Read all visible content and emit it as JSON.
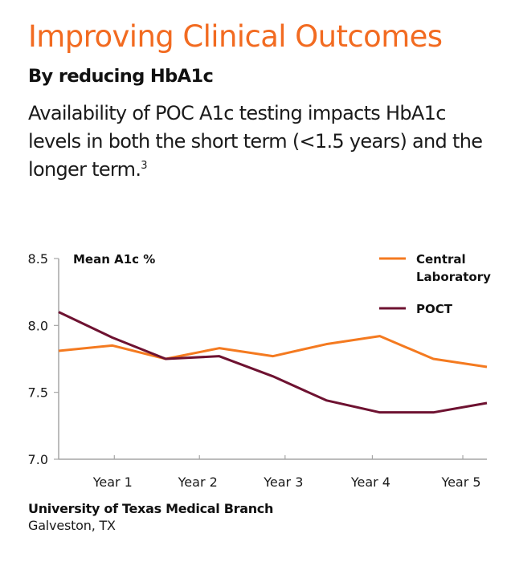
{
  "header": {
    "title": "Improving Clinical Outcomes",
    "subtitle": "By reducing HbA1c",
    "body": "Availability of POC A1c testing impacts HbA1c levels in both the short term (<1.5 years) and the longer term.",
    "footnote_ref": "3"
  },
  "colors": {
    "accent": "#F26B21",
    "central_lab": "#F47A20",
    "poct": "#6E1231",
    "axis": "#a6a6a6",
    "text": "#1a1a1a"
  },
  "chart_data": {
    "type": "line",
    "title": "Mean A1c %",
    "xlabel": "",
    "ylabel": "Mean A1c %",
    "ylim": [
      7.0,
      8.5
    ],
    "yticks": [
      "8.5",
      "8.0",
      "7.5",
      "7.0"
    ],
    "ytick_values": [
      8.5,
      8.0,
      7.5,
      7.0
    ],
    "x": [
      0,
      1,
      2,
      3,
      4,
      5,
      6,
      7,
      8
    ],
    "xlim": [
      0,
      8
    ],
    "xtick_labels": [
      "Year 1",
      "Year 2",
      "Year 3",
      "Year 4",
      "Year 5"
    ],
    "xtick_positions": [
      1.04,
      2.63,
      4.23,
      5.86,
      7.55
    ],
    "grid": false,
    "legend_position": "top-right",
    "series": [
      {
        "name": "Central Laboratory",
        "name_lines": [
          "Central",
          "Laboratory"
        ],
        "color": "#F47A20",
        "values": [
          7.81,
          7.85,
          7.75,
          7.83,
          7.77,
          7.86,
          7.92,
          7.75,
          7.69
        ]
      },
      {
        "name": "POCT",
        "name_lines": [
          "POCT"
        ],
        "color": "#6E1231",
        "values": [
          8.1,
          7.91,
          7.75,
          7.77,
          7.62,
          7.44,
          7.35,
          7.35,
          7.42
        ]
      }
    ]
  },
  "footer": {
    "institution": "University of Texas Medical Branch",
    "location": "Galveston, TX"
  }
}
